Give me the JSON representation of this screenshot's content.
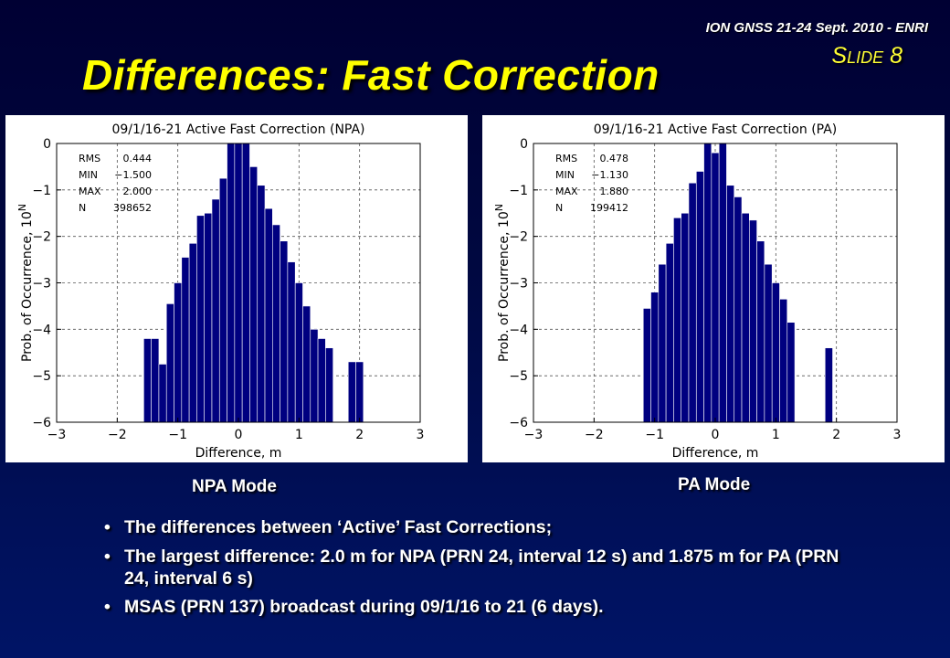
{
  "header": {
    "conference": "ION GNSS 21-24 Sept. 2010 - ENRI",
    "slide_prefix_big": "S",
    "slide_prefix_small": "LIDE",
    "slide_number": "8"
  },
  "title": "Differences: Fast Correction",
  "charts": {
    "npa_caption": "NPA Mode",
    "pa_caption": "PA Mode"
  },
  "bullets": [
    {
      "text": "The differences between ‘Active’ Fast Corrections;"
    },
    {
      "text": "The largest difference: 2.0 m for NPA (PRN 24, interval 12 s) and 1.875 m for PA (PRN 24, interval 6 s)"
    },
    {
      "text": "MSAS (PRN 137) broadcast during 09/1/16 to 21 (6 days)."
    }
  ],
  "chart_data": [
    {
      "type": "bar",
      "title": "09/1/16-21 Active Fast Correction (NPA)",
      "xlabel": "Difference, m",
      "ylabel": "Prob. of Occurrence, 10",
      "ylabel_sup": "N",
      "xlim": [
        -3,
        3
      ],
      "ylim": [
        -6,
        0
      ],
      "xticks": [
        "−3",
        "−2",
        "−1",
        "0",
        "1",
        "2",
        "3"
      ],
      "yticks": [
        "0",
        "−1",
        "−2",
        "−3",
        "−4",
        "−5",
        "−6"
      ],
      "grid": true,
      "bar_width": 0.125,
      "bar_color": "#000080",
      "x": [
        -1.5,
        -1.375,
        -1.25,
        -1.125,
        -1.0,
        -0.875,
        -0.75,
        -0.625,
        -0.5,
        -0.375,
        -0.25,
        -0.125,
        0.0,
        0.125,
        0.25,
        0.375,
        0.5,
        0.625,
        0.75,
        0.875,
        1.0,
        1.125,
        1.25,
        1.375,
        1.5,
        1.875,
        2.0
      ],
      "values": [
        -4.2,
        -4.2,
        -4.75,
        -3.45,
        -3.0,
        -2.45,
        -2.15,
        -1.55,
        -1.5,
        -1.2,
        -0.75,
        0,
        0,
        0,
        -0.5,
        -0.9,
        -1.4,
        -1.75,
        -2.1,
        -2.55,
        -3.0,
        -3.5,
        -4.0,
        -4.2,
        -4.4,
        -4.7,
        -4.7
      ],
      "stats": [
        {
          "label": "RMS",
          "value": "0.444"
        },
        {
          "label": "MIN",
          "value": "−1.500"
        },
        {
          "label": "MAX",
          "value": "2.000"
        },
        {
          "label": "N",
          "value": "398652"
        }
      ]
    },
    {
      "type": "bar",
      "title": "09/1/16-21 Active Fast Correction (PA)",
      "xlabel": "Difference, m",
      "ylabel": "Prob. of Occurrence, 10",
      "ylabel_sup": "N",
      "xlim": [
        -3,
        3
      ],
      "ylim": [
        -6,
        0
      ],
      "xticks": [
        "−3",
        "−2",
        "−1",
        "0",
        "1",
        "2",
        "3"
      ],
      "yticks": [
        "0",
        "−1",
        "−2",
        "−3",
        "−4",
        "−5",
        "−6"
      ],
      "grid": true,
      "bar_width": 0.125,
      "bar_color": "#000080",
      "x": [
        -1.125,
        -1.0,
        -0.875,
        -0.75,
        -0.625,
        -0.5,
        -0.375,
        -0.25,
        -0.125,
        0.0,
        0.125,
        0.25,
        0.375,
        0.5,
        0.625,
        0.75,
        0.875,
        1.0,
        1.125,
        1.25,
        1.875
      ],
      "values": [
        -3.55,
        -3.2,
        -2.6,
        -2.15,
        -1.6,
        -1.5,
        -0.85,
        -0.6,
        0,
        -0.2,
        0,
        -0.9,
        -1.15,
        -1.5,
        -1.65,
        -2.1,
        -2.6,
        -3.0,
        -3.35,
        -3.85,
        -4.4
      ],
      "stats": [
        {
          "label": "RMS",
          "value": "0.478"
        },
        {
          "label": "MIN",
          "value": "−1.130"
        },
        {
          "label": "MAX",
          "value": "1.880"
        },
        {
          "label": "N",
          "value": "199412"
        }
      ]
    }
  ]
}
